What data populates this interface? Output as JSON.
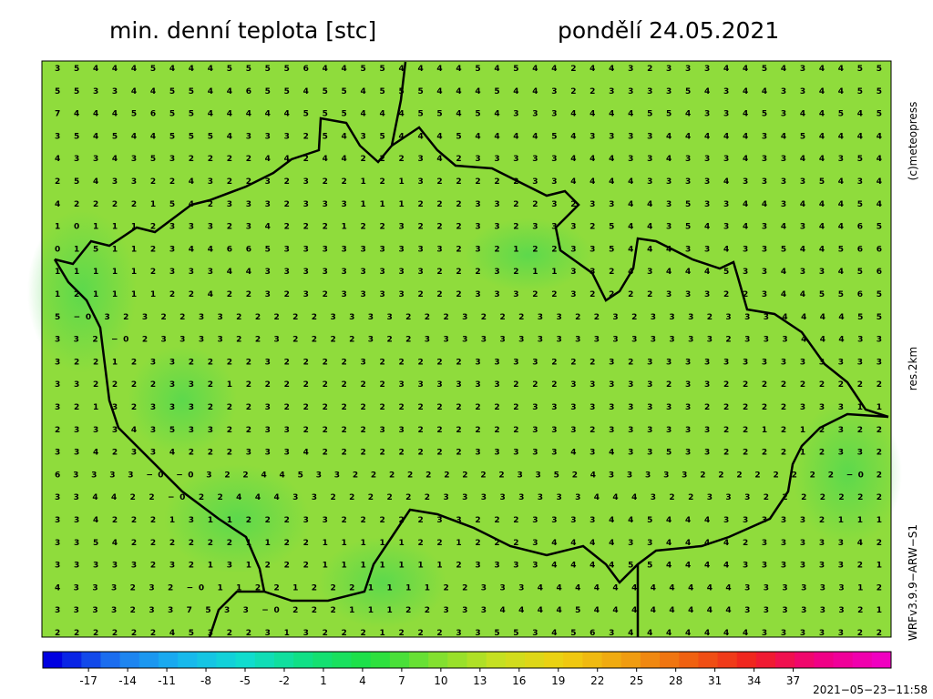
{
  "header": {
    "title": "min. denní teplota [stc]",
    "date": "pondělí 24.05.2021"
  },
  "side_labels": {
    "copyright": "(c)meteopress",
    "resolution": "res.2km",
    "model": "WRFv3.9.9−ARW−S1"
  },
  "timestamp": "2021−05−23−11:58",
  "grid_values": {
    "rows": [
      "3 5 4 4 4 5 4 4 4 5 5 5 5 6 4 4 5 5 4 4 4 4 5 4 5 4 4 2 4 4 3 2 3 3 3 4 4 5 4 3 4 4 5 5",
      "5 5 3 3 4 4 5 5 4 4 6 5 5 4 5 5 4 5 5 5 4 4 4 5 4 4 3 2 2 3 3 3 3 5 4 3 4 4 3 3 4 4 5 5",
      "7 4 4 4 5 6 5 5 4 4 4 4 4 5 5 5 4 4 4 5 5 4 5 4 3 3 3 4 4 4 4 5 5 4 3 3 4 5 3 4 4 5 4 5",
      "3 5 4 5 4 4 5 5 5 4 3 3 3 2 5 4 3 5 4 4 4 5 4 4 4 4 5 4 3 3 3 3 4 4 4 4 4 3 4 5 4 4 4 4",
      "4 3 3 4 3 5 3 2 2 2 2 4 4 2 4 4 2 2 2 3 4 2 3 3 3 3 3 4 4 4 3 3 4 3 3 3 4 3 3 4 4 3 5 4",
      "2 5 4 3 3 2 2 4 3 2 2 3 2 3 2 2 1 2 1 3 2 2 2 2 2 3 3 4 4 4 4 3 3 3 3 4 3 3 3 3 5 4 3 4",
      "4 2 2 2 2 1 5 4 2 3 3 3 2 3 3 3 1 1 1 2 2 2 3 3 2 2 3 2 3 3 4 4 3 5 3 3 4 4 3 4 4 4 5 4",
      "1 0 1 1 1 2 3 3 3 2 3 4 2 2 2 1 2 2 3 2 2 2 3 3 2 3 3 3 2 5 4 4 3 5 4 3 4 3 4 3 4 4 6 5",
      "0 1 5 1 1 2 3 4 4 6 6 5 3 3 3 3 3 3 3 3 3 2 3 2 1 2 2 3 3 5 4 4 4 3 3 4 3 3 5 4 4 5 6 6",
      "1 1 1 1 1 2 3 3 3 4 4 3 3 3 3 3 3 3 3 3 2 2 2 3 2 1 1 3 3 2 4 3 4 4 4 5 3 3 4 3 3 4 5 6",
      "1 2 1 1 1 1 2 2 4 2 2 3 2 3 2 3 3 3 3 2 2 2 3 3 3 2 2 3 2 2 2 2 3 3 3 2 2 3 4 4 5 5 6 5",
      "5 −0 3 2 3 2 2 3 3 2 2 2 2 2 3 3 3 3 2 2 2 3 2 2 2 3 3 2 2 3 2 3 3 3 2 3 3 3 4 4 4 4 5 5",
      "3 3 2 −0 2 3 3 3 3 2 2 3 2 2 2 2 3 2 2 3 3 3 3 3 3 3 3 3 3 3 3 3 3 3 3 2 3 3 3 4 4 4 3 3",
      "3 2 2 1 2 3 3 2 2 2 2 3 2 2 2 2 3 2 2 2 2 2 3 3 3 3 2 2 2 3 2 3 3 3 3 3 3 3 3 3 3 3 3 3",
      "3 3 2 2 2 2 3 3 2 1 2 2 2 2 2 2 2 2 3 3 3 3 3 3 2 2 2 3 3 3 3 3 2 3 3 2 2 2 2 2 2 2 2 2",
      "3 2 1 3 2 3 3 3 2 2 2 3 2 2 2 2 2 2 2 2 2 2 2 2 2 3 3 3 3 3 3 3 3 3 2 2 2 2 2 3 3 3 1 1",
      "2 3 3 3 4 3 5 3 3 2 2 3 3 2 2 2 2 3 3 2 2 2 2 2 2 3 3 3 2 3 3 3 3 3 3 2 2 1 2 1 2 3 2 2",
      "3 3 4 2 3 3 4 2 2 2 3 3 3 4 2 2 2 2 2 2 2 2 3 3 3 3 3 4 3 4 3 3 5 3 3 2 2 2 2 1 2 3 3 2",
      "6 3 3 3 3 −0 −0 3 2 2 4 4 5 3 3 2 2 2 2 2 2 2 2 2 3 3 5 2 4 3 3 3 3 3 2 2 2 2 2 2 2 2 −0 2",
      "3 3 4 4 2 2 −0 2 2 4 4 4 3 3 2 2 2 2 2 2 3 3 3 3 3 3 3 3 4 4 4 3 2 2 3 3 3 2 2 2 2 2 2 2",
      "3 3 4 2 2 2 1 3 1 1 2 2 2 3 3 2 2 2 2 2 3 3 2 2 2 3 3 3 3 4 4 5 4 4 4 3 3 3 3 3 2 1 1 1",
      "3 3 5 4 2 2 2 2 2 2 1 1 2 2 1 1 1 1 1 2 2 1 2 2 2 3 4 4 4 4 3 3 4 4 4 4 2 3 3 3 3 3 4 2",
      "3 3 3 3 3 2 3 2 1 3 1 2 2 2 1 1 1 1 1 1 1 2 3 3 3 3 4 4 4 4 5 5 4 4 4 4 3 3 3 3 3 3 2 1",
      "4 3 3 3 2 3 2 −0 1 1 2 2 1 2 2 2 1 1 1 1 2 2 3 3 3 4 4 4 4 4 4 4 4 4 4 4 3 3 3 3 3 3 1 2",
      "3 3 3 3 2 3 3 7 5 3 3 −0 2 2 2 1 1 1 2 2 3 3 3 4 4 4 4 5 4 4 4 4 4 4 4 4 3 3 3 3 3 3 2 1",
      "2 2 2 2 2 2 4 5 3 2 2 3 1 3 2 2 2 1 2 2 2 3 3 5 5 3 4 5 6 3 4 4 4 4 4 4 4 3 3 3 3 3 2 2"
    ]
  },
  "colorbar": {
    "ticks": [
      -17,
      -14,
      -11,
      -8,
      -5,
      -2,
      1,
      4,
      7,
      10,
      13,
      16,
      19,
      22,
      25,
      28,
      31,
      34,
      37
    ],
    "lim": [
      -20.5,
      44.5
    ],
    "colors": [
      "#0000e0",
      "#1e78f0",
      "#18b4f0",
      "#10dcd0",
      "#10e080",
      "#20e040",
      "#80e030",
      "#c8e020",
      "#f0d010",
      "#f0a010",
      "#f06010",
      "#f02020",
      "#f00080",
      "#f000c0"
    ]
  }
}
